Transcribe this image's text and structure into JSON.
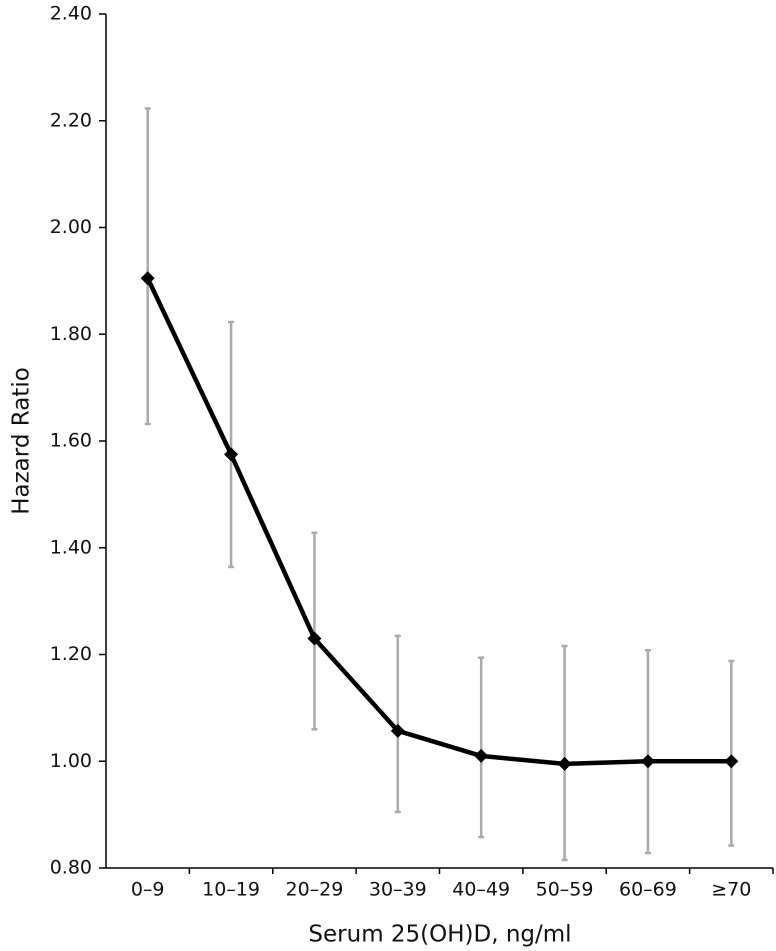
{
  "chart_data": {
    "type": "line",
    "x_label": "Serum 25(OH)D, ng/ml",
    "y_label": "Hazard Ratio",
    "categories": [
      "0–9",
      "10–19",
      "20–29",
      "30–39",
      "40–49",
      "50–59",
      "60–69",
      "≥70"
    ],
    "series": [
      {
        "color": "#000000",
        "error_color": "#aaaaaa",
        "values": [
          1.905,
          1.575,
          1.23,
          1.057,
          1.01,
          0.995,
          1.0,
          1.0
        ],
        "ci_lower": [
          1.632,
          1.364,
          1.06,
          0.905,
          0.858,
          0.815,
          0.828,
          0.842
        ],
        "ci_upper": [
          2.223,
          1.823,
          1.428,
          1.235,
          1.194,
          1.216,
          1.208,
          1.188
        ]
      }
    ],
    "ylim": [
      0.8,
      2.4
    ],
    "yticks": [
      {
        "value": 0.8,
        "label": "0.80"
      },
      {
        "value": 1.0,
        "label": "1.00"
      },
      {
        "value": 1.2,
        "label": "1.20"
      },
      {
        "value": 1.4,
        "label": "1.40"
      },
      {
        "value": 1.6,
        "label": "1.60"
      },
      {
        "value": 1.8,
        "label": "1.80"
      },
      {
        "value": 2.0,
        "label": "2.00"
      },
      {
        "value": 2.2,
        "label": "2.20"
      },
      {
        "value": 2.4,
        "label": "2.40"
      }
    ],
    "grid": false
  }
}
